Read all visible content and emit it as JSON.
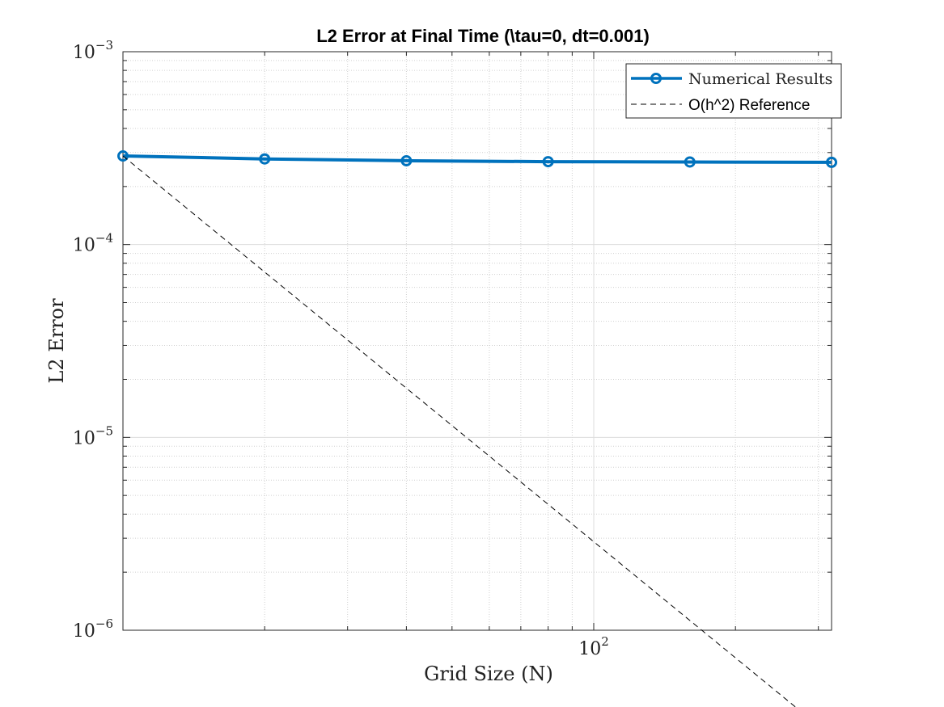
{
  "chart_data": {
    "type": "line",
    "title": "L2 Error at Final Time (\\tau=0, dt=0.001)",
    "xlabel": "Grid Size (N)",
    "ylabel": "L2 Error",
    "xscale": "log",
    "yscale": "log",
    "xlim": [
      10,
      320
    ],
    "ylim": [
      1e-06,
      0.001
    ],
    "x_ticks": [
      {
        "value": 100,
        "base": "10",
        "exp": "2"
      }
    ],
    "y_ticks": [
      {
        "value": 1e-06,
        "base": "10",
        "exp": "−6"
      },
      {
        "value": 1e-05,
        "base": "10",
        "exp": "−5"
      },
      {
        "value": 0.0001,
        "base": "10",
        "exp": "−4"
      },
      {
        "value": 0.001,
        "base": "10",
        "exp": "−3"
      }
    ],
    "grid": true,
    "minor_grid": true,
    "legend_position": "top-right",
    "series": [
      {
        "name": "Numerical Results",
        "style": "solid",
        "marker": "circle",
        "color": "#0072BD",
        "x": [
          10,
          20,
          40,
          80,
          160,
          320
        ],
        "y": [
          0.000288,
          0.000278,
          0.000272,
          0.000269,
          0.000268,
          0.000267
        ]
      },
      {
        "name": "O(h^2) Reference",
        "style": "dashed",
        "marker": "none",
        "color": "#000000",
        "x": [
          10,
          320
        ],
        "y": [
          0.000288,
          2.81e-07
        ]
      }
    ]
  }
}
